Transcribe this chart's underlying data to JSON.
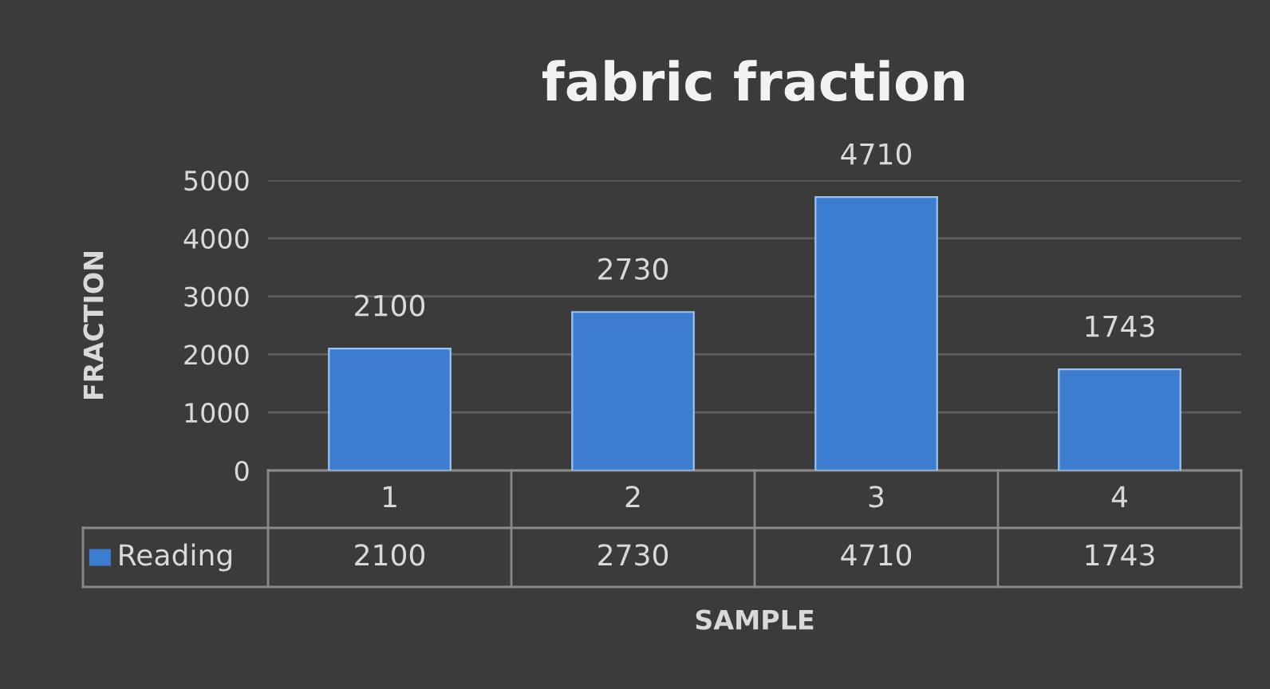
{
  "chart_data": {
    "type": "bar",
    "title": "fabric fraction",
    "xlabel": "SAMPLE",
    "ylabel": "FRACTION",
    "categories": [
      "1",
      "2",
      "3",
      "4"
    ],
    "series": [
      {
        "name": "Reading",
        "color": "#3d7dd0",
        "values": [
          2100,
          2730,
          4710,
          1743
        ]
      }
    ],
    "annotations": [
      "2100",
      "2730",
      "4710",
      "1743"
    ],
    "ylim": [
      0,
      5000
    ],
    "yticks": [
      0,
      1000,
      2000,
      3000,
      4000,
      5000
    ],
    "grid": "y",
    "data_labels": true
  }
}
